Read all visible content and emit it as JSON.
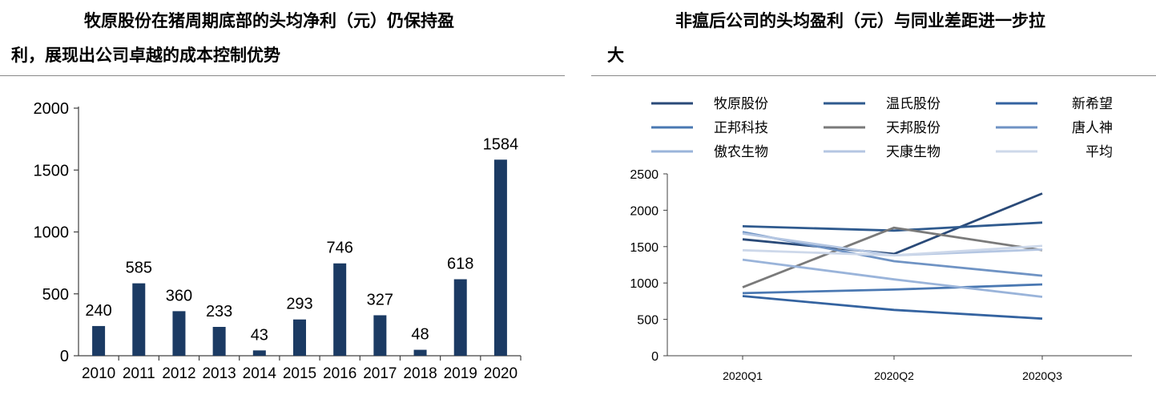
{
  "left": {
    "title_line1": "牧原股份在猪周期底部的头均净利（元）仍保持盈",
    "title_line2": "利，展现出公司卓越的成本控制优势"
  },
  "right": {
    "title_line1": "非瘟后公司的头均盈利（元）与同业差距进一步拉",
    "title_line2": "大"
  },
  "colors": {
    "bar": "#1b3a63",
    "axis": "#404040",
    "series": [
      "#2a4a78",
      "#2f5a8e",
      "#3463a0",
      "#4a78b2",
      "#7a7a7a",
      "#6f93c4",
      "#9ab4da",
      "#b4c6e2",
      "#cdd8ea"
    ]
  },
  "chart_data": [
    {
      "type": "bar",
      "categories": [
        "2010",
        "2011",
        "2012",
        "2013",
        "2014",
        "2015",
        "2016",
        "2017",
        "2018",
        "2019",
        "2020"
      ],
      "values": [
        240,
        585,
        360,
        233,
        43,
        293,
        746,
        327,
        48,
        618,
        1584
      ],
      "data_labels": [
        "240",
        "585",
        "360",
        "233",
        "43",
        "293",
        "746",
        "327",
        "48",
        "618",
        "1584"
      ],
      "yticks": [
        "0",
        "500",
        "1000",
        "1500",
        "2000"
      ],
      "ylim": [
        0,
        2000
      ],
      "grid": false,
      "legend": "none"
    },
    {
      "type": "line",
      "x": [
        "2020Q1",
        "2020Q2",
        "2020Q3"
      ],
      "yticks": [
        "0",
        "500",
        "1000",
        "1500",
        "2000",
        "2500"
      ],
      "ylim": [
        0,
        2500
      ],
      "grid": false,
      "legend": "top",
      "series": [
        {
          "name": "牧原股份",
          "values": [
            1600,
            1400,
            2230
          ]
        },
        {
          "name": "温氏股份",
          "values": [
            1780,
            1720,
            1830
          ]
        },
        {
          "name": "新希望",
          "values": [
            820,
            630,
            510
          ]
        },
        {
          "name": "正邦科技",
          "values": [
            860,
            910,
            980
          ]
        },
        {
          "name": "天邦股份",
          "values": [
            940,
            1760,
            1450
          ]
        },
        {
          "name": "唐人神",
          "values": [
            1700,
            1300,
            1100
          ]
        },
        {
          "name": "傲农生物",
          "values": [
            1320,
            1050,
            810
          ]
        },
        {
          "name": "天康生物",
          "values": [
            1680,
            1380,
            1460
          ]
        },
        {
          "name": "平均",
          "values": [
            1450,
            1380,
            1510
          ]
        }
      ]
    }
  ]
}
